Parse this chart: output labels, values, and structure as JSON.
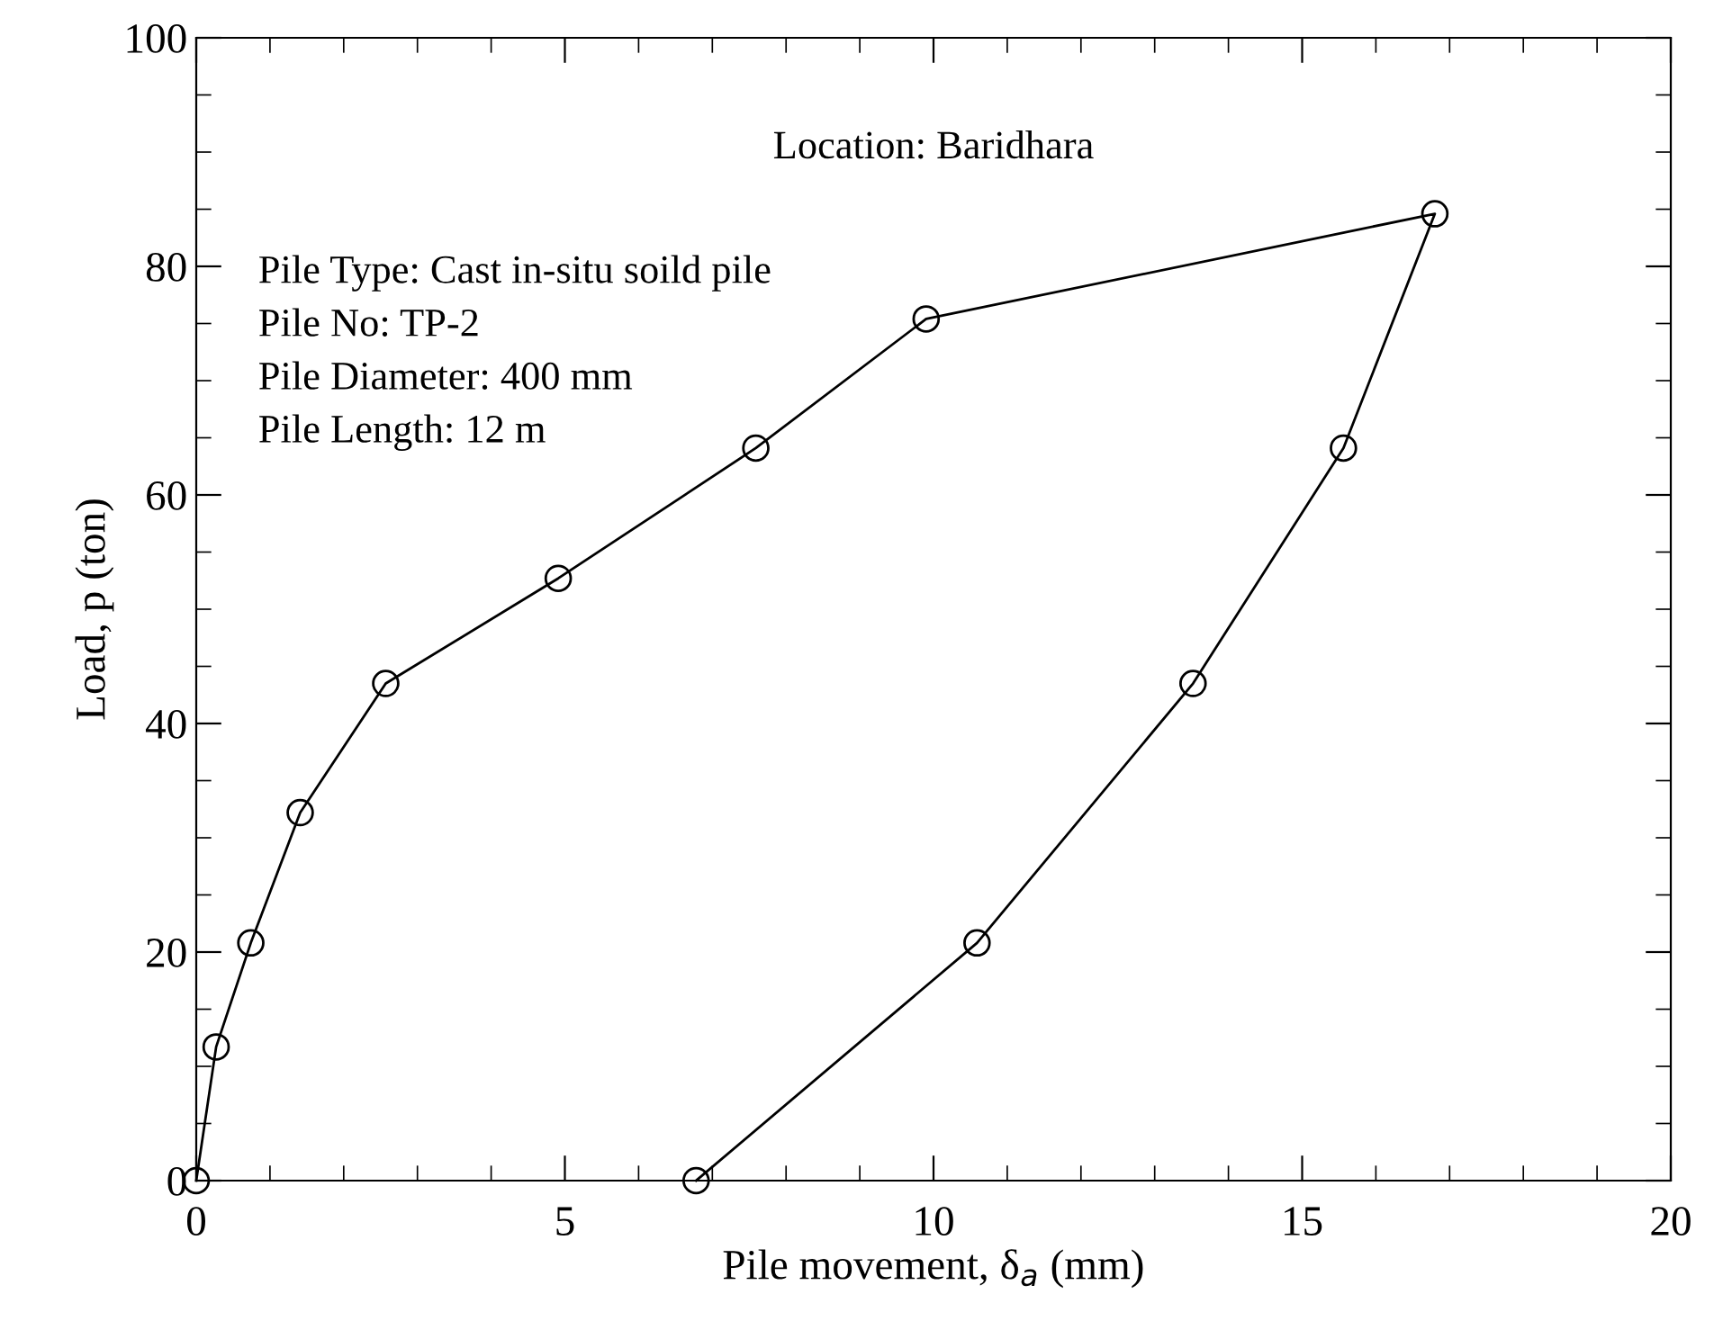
{
  "chart_data": {
    "type": "line",
    "xlabel": "Pile movement, δ$_{a}$ (mm)",
    "ylabel": "Load, p (ton)",
    "annotations": [
      "Location: Baridhara",
      "Pile Type: Cast in-situ soild pile",
      "Pile No: TP-2",
      "Pile Diameter: 400 mm",
      "Pile Length: 12 m"
    ],
    "series": [
      {
        "color": "#000000",
        "x": [
          0,
          0.27,
          0.74,
          1.41,
          2.57,
          4.91,
          7.59,
          9.9,
          16.8,
          15.56,
          13.52,
          10.59,
          6.78
        ],
        "values": [
          0,
          11.7,
          20.8,
          32.2,
          43.5,
          52.7,
          64.1,
          75.4,
          84.6,
          64.1,
          43.5,
          20.8,
          0
        ]
      }
    ],
    "xlim": [
      0,
      20
    ],
    "ylim": [
      0,
      100
    ],
    "xticks": [
      0,
      5,
      10,
      15,
      20
    ],
    "yticks": [
      0,
      20,
      40,
      60,
      80,
      100
    ],
    "grid": false,
    "legend": false,
    "marker": "circle",
    "line_style": "solid"
  }
}
